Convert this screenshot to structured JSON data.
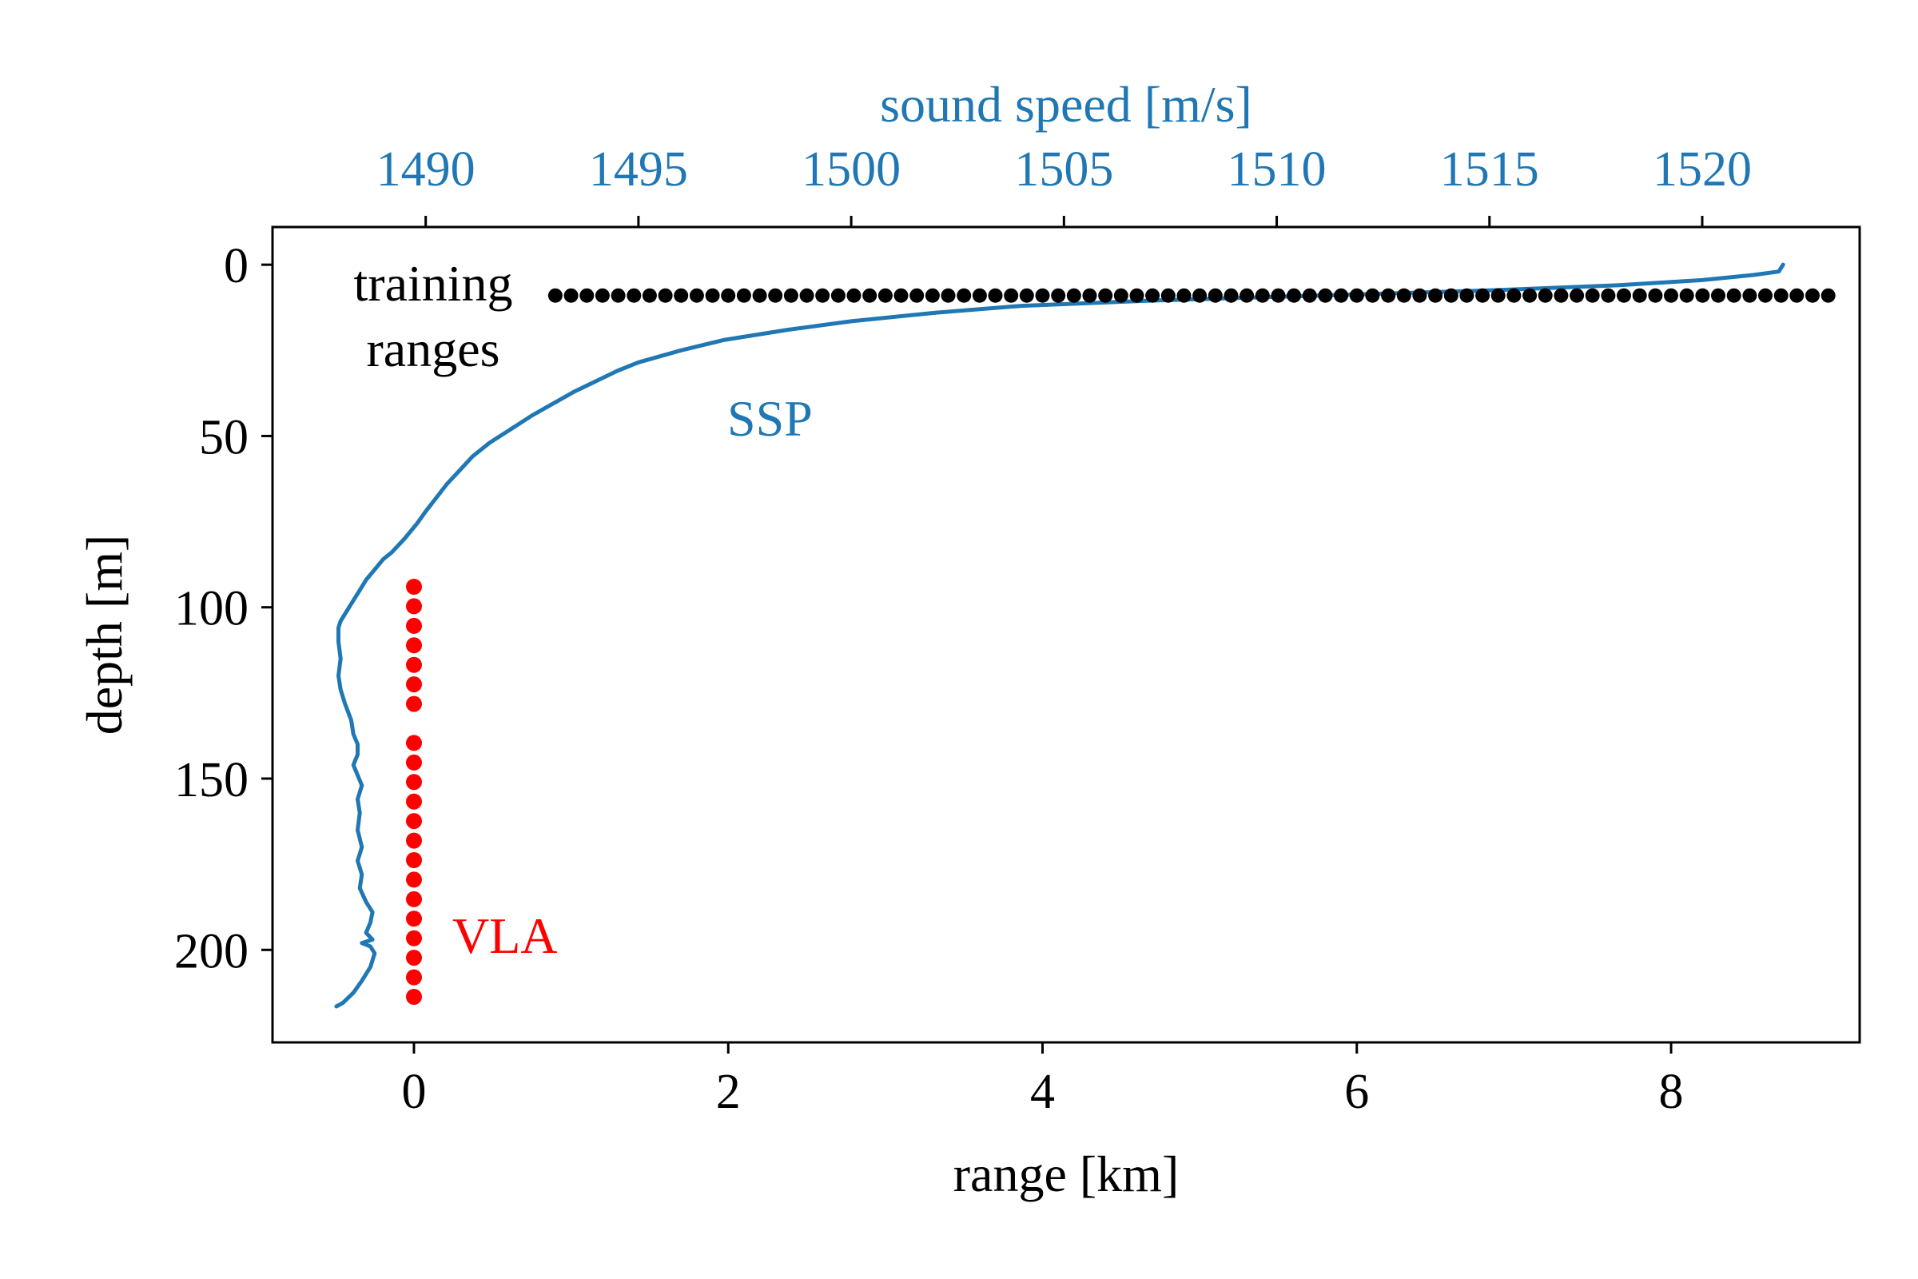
{
  "chart_data": {
    "type": "scatter",
    "xlabel": "range [km]",
    "ylabel": "depth [m]",
    "top_xlabel": "sound speed [m/s]",
    "xlim": [
      -0.9,
      9.2
    ],
    "ylim": [
      227,
      -11
    ],
    "top_xlim": [
      1486.4,
      1523.7
    ],
    "x_ticks": [
      0,
      2,
      4,
      6,
      8
    ],
    "x_tick_labels": [
      "0",
      "2",
      "4",
      "6",
      "8"
    ],
    "y_ticks": [
      0,
      50,
      100,
      150,
      200
    ],
    "y_tick_labels": [
      "0",
      "50",
      "100",
      "150",
      "200"
    ],
    "top_x_ticks": [
      1490,
      1495,
      1500,
      1505,
      1510,
      1515,
      1520
    ],
    "top_x_tick_labels": [
      "1490",
      "1495",
      "1500",
      "1505",
      "1510",
      "1515",
      "1520"
    ],
    "grid": false,
    "colors": {
      "ssp": "#1f77b4",
      "vla": "#ff0000",
      "training": "#000000",
      "axis": "#000000"
    },
    "series": [
      {
        "name": "training ranges",
        "kind": "points",
        "depth": 9,
        "x_start": 0.9,
        "x_end": 9.0,
        "count": 82
      },
      {
        "name": "VLA",
        "kind": "points",
        "x": 0,
        "depths": [
          94,
          99.7,
          105.4,
          111.1,
          116.8,
          122.5,
          128.2,
          139.6,
          145.3,
          151,
          156.7,
          162.4,
          168.1,
          173.8,
          179.5,
          185.2,
          190.9,
          196.6,
          202.3,
          208,
          213.7
        ]
      },
      {
        "name": "SSP",
        "kind": "line",
        "axis": "top",
        "points": [
          [
            1521.9,
            0
          ],
          [
            1521.8,
            2
          ],
          [
            1521.2,
            3
          ],
          [
            1520,
            4.5
          ],
          [
            1518,
            6
          ],
          [
            1515,
            7.5
          ],
          [
            1511,
            9
          ],
          [
            1507,
            10.5
          ],
          [
            1504,
            12
          ],
          [
            1502,
            14
          ],
          [
            1500,
            16.5
          ],
          [
            1498.5,
            19
          ],
          [
            1497,
            22
          ],
          [
            1496,
            25
          ],
          [
            1495,
            28.5
          ],
          [
            1494.5,
            31
          ],
          [
            1494,
            34
          ],
          [
            1493.5,
            37
          ],
          [
            1493,
            40.5
          ],
          [
            1492.5,
            44
          ],
          [
            1492,
            48
          ],
          [
            1491.5,
            52
          ],
          [
            1491.1,
            56
          ],
          [
            1490.8,
            60
          ],
          [
            1490.5,
            64
          ],
          [
            1490.25,
            68
          ],
          [
            1490,
            72
          ],
          [
            1489.8,
            75.5
          ],
          [
            1489.5,
            80
          ],
          [
            1489.2,
            84
          ],
          [
            1489,
            86
          ],
          [
            1488.8,
            89
          ],
          [
            1488.6,
            92
          ],
          [
            1488.45,
            95
          ],
          [
            1488.3,
            98
          ],
          [
            1488.15,
            101
          ],
          [
            1488,
            104
          ],
          [
            1487.95,
            106
          ],
          [
            1487.95,
            110
          ],
          [
            1488,
            115
          ],
          [
            1487.95,
            120
          ],
          [
            1488,
            124
          ],
          [
            1488.1,
            128
          ],
          [
            1488.25,
            133
          ],
          [
            1488.3,
            137
          ],
          [
            1488.4,
            140
          ],
          [
            1488.4,
            143
          ],
          [
            1488.3,
            146
          ],
          [
            1488.4,
            149
          ],
          [
            1488.5,
            152
          ],
          [
            1488.4,
            156
          ],
          [
            1488.45,
            160
          ],
          [
            1488.4,
            165
          ],
          [
            1488.5,
            170
          ],
          [
            1488.4,
            174
          ],
          [
            1488.5,
            178
          ],
          [
            1488.45,
            182
          ],
          [
            1488.6,
            186
          ],
          [
            1488.75,
            189
          ],
          [
            1488.7,
            192
          ],
          [
            1488.6,
            195
          ],
          [
            1488.75,
            197
          ],
          [
            1488.5,
            198
          ],
          [
            1488.7,
            199
          ],
          [
            1488.8,
            201
          ],
          [
            1488.7,
            205
          ],
          [
            1488.5,
            209
          ],
          [
            1488.3,
            212.5
          ],
          [
            1488.05,
            215.5
          ],
          [
            1487.9,
            216.5
          ]
        ]
      }
    ],
    "annotations": {
      "training_line1": "training",
      "training_line2": "ranges",
      "ssp": "SSP",
      "vla": "VLA"
    }
  }
}
